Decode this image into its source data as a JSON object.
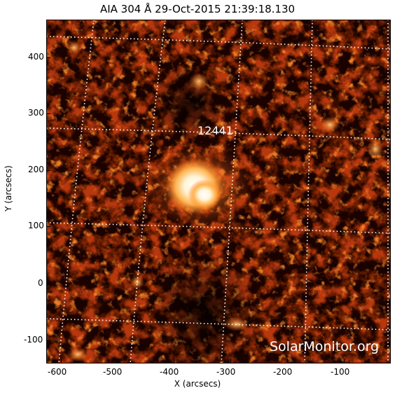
{
  "title": "AIA 304 Å 29-Oct-2015 21:39:18.130",
  "region_label": "12441",
  "watermark": "SolarMonitor.org",
  "axes": {
    "x_label": "X (arcsecs)",
    "y_label": "Y (arcsecs)",
    "x_ticks": [
      "-600",
      "-500",
      "-400",
      "-300",
      "-200",
      "-100"
    ],
    "y_ticks": [
      "400",
      "300",
      "200",
      "100",
      "0",
      "-100"
    ]
  },
  "colors": {
    "colormap": "sdo-aia-304 red-orange-white",
    "grid": "#ffffff",
    "background": "#ffffff"
  }
}
